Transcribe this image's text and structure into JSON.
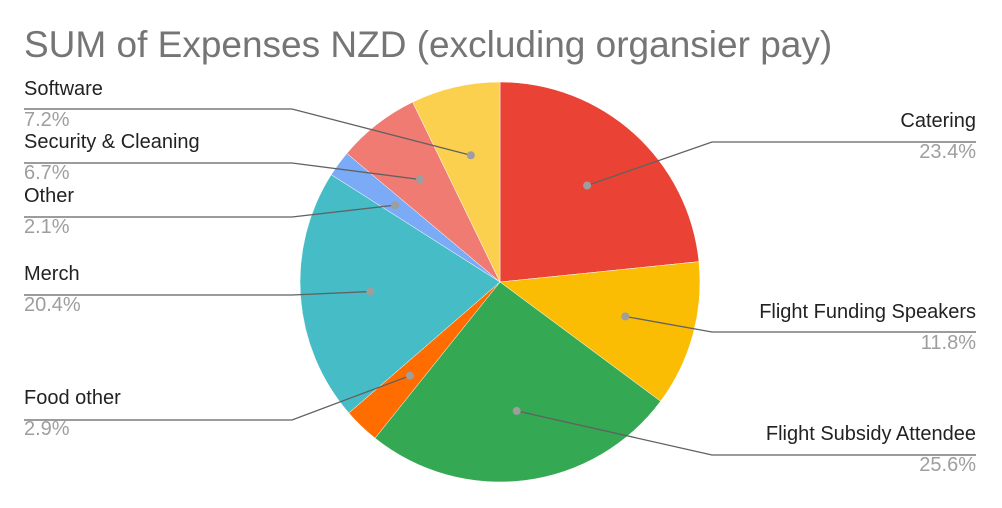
{
  "chart_data": {
    "type": "pie",
    "title": "SUM of Expenses NZD (excluding organsier pay)",
    "slices": [
      {
        "label": "Catering",
        "percent_label": "23.4%",
        "value": 23.4,
        "color": "#ea4335"
      },
      {
        "label": "Flight Funding Speakers",
        "percent_label": "11.8%",
        "value": 11.8,
        "color": "#fbbc04"
      },
      {
        "label": "Flight Subsidy Attendee",
        "percent_label": "25.6%",
        "value": 25.6,
        "color": "#34a853"
      },
      {
        "label": "Food other",
        "percent_label": "2.9%",
        "value": 2.9,
        "color": "#ff6d01"
      },
      {
        "label": "Merch",
        "percent_label": "20.4%",
        "value": 20.4,
        "color": "#46bdc6"
      },
      {
        "label": "Other",
        "percent_label": "2.1%",
        "value": 2.1,
        "color": "#7baaf7"
      },
      {
        "label": "Security & Cleaning",
        "percent_label": "6.7%",
        "value": 6.7,
        "color": "#f07b72"
      },
      {
        "label": "Software",
        "percent_label": "7.2%",
        "value": 7.2,
        "color": "#fcd04f"
      }
    ],
    "legend": "none",
    "labels": "outside-with-leader-lines"
  }
}
